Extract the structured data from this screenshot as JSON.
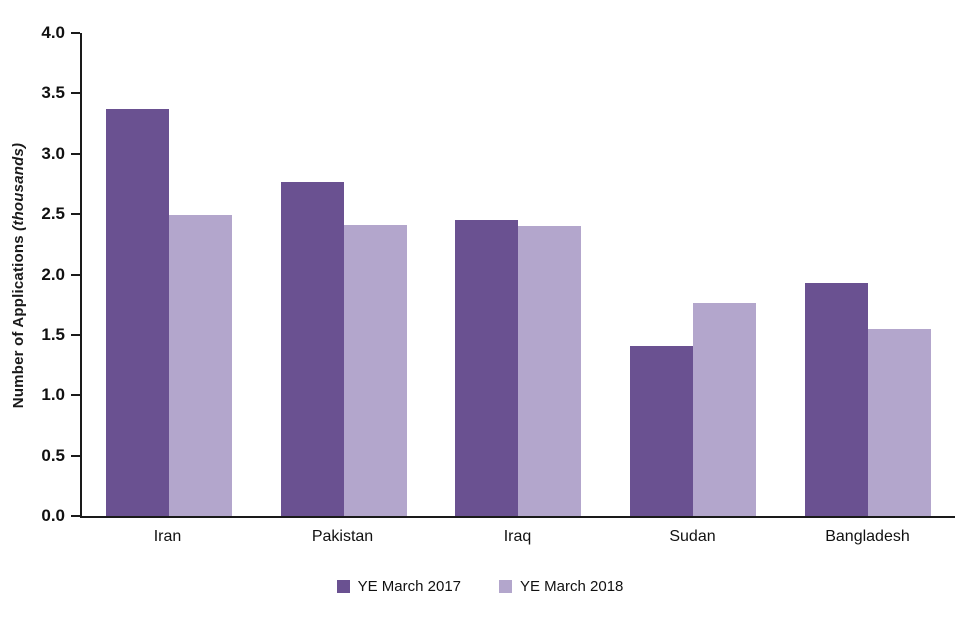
{
  "chart_data": {
    "type": "bar",
    "title": "",
    "xlabel": "",
    "ylabel_bold": "Number of Applications ",
    "ylabel_italic": "(thousands)",
    "categories": [
      "Iran",
      "Pakistan",
      "Iraq",
      "Sudan",
      "Bangladesh"
    ],
    "series": [
      {
        "name": "YE March 2017",
        "color": "#6a5191",
        "values": [
          3.37,
          2.77,
          2.45,
          1.41,
          1.93
        ]
      },
      {
        "name": "YE March 2018",
        "color": "#b3a6cc",
        "values": [
          2.49,
          2.41,
          2.4,
          1.76,
          1.55
        ]
      }
    ],
    "ylim": [
      0,
      4.0
    ],
    "ytick_step": 0.5,
    "yticks": [
      "0.0",
      "0.5",
      "1.0",
      "1.5",
      "2.0",
      "2.5",
      "3.0",
      "3.5",
      "4.0"
    ],
    "grid": false,
    "legend_position": "bottom",
    "axis_color": "#1a1a1a"
  }
}
